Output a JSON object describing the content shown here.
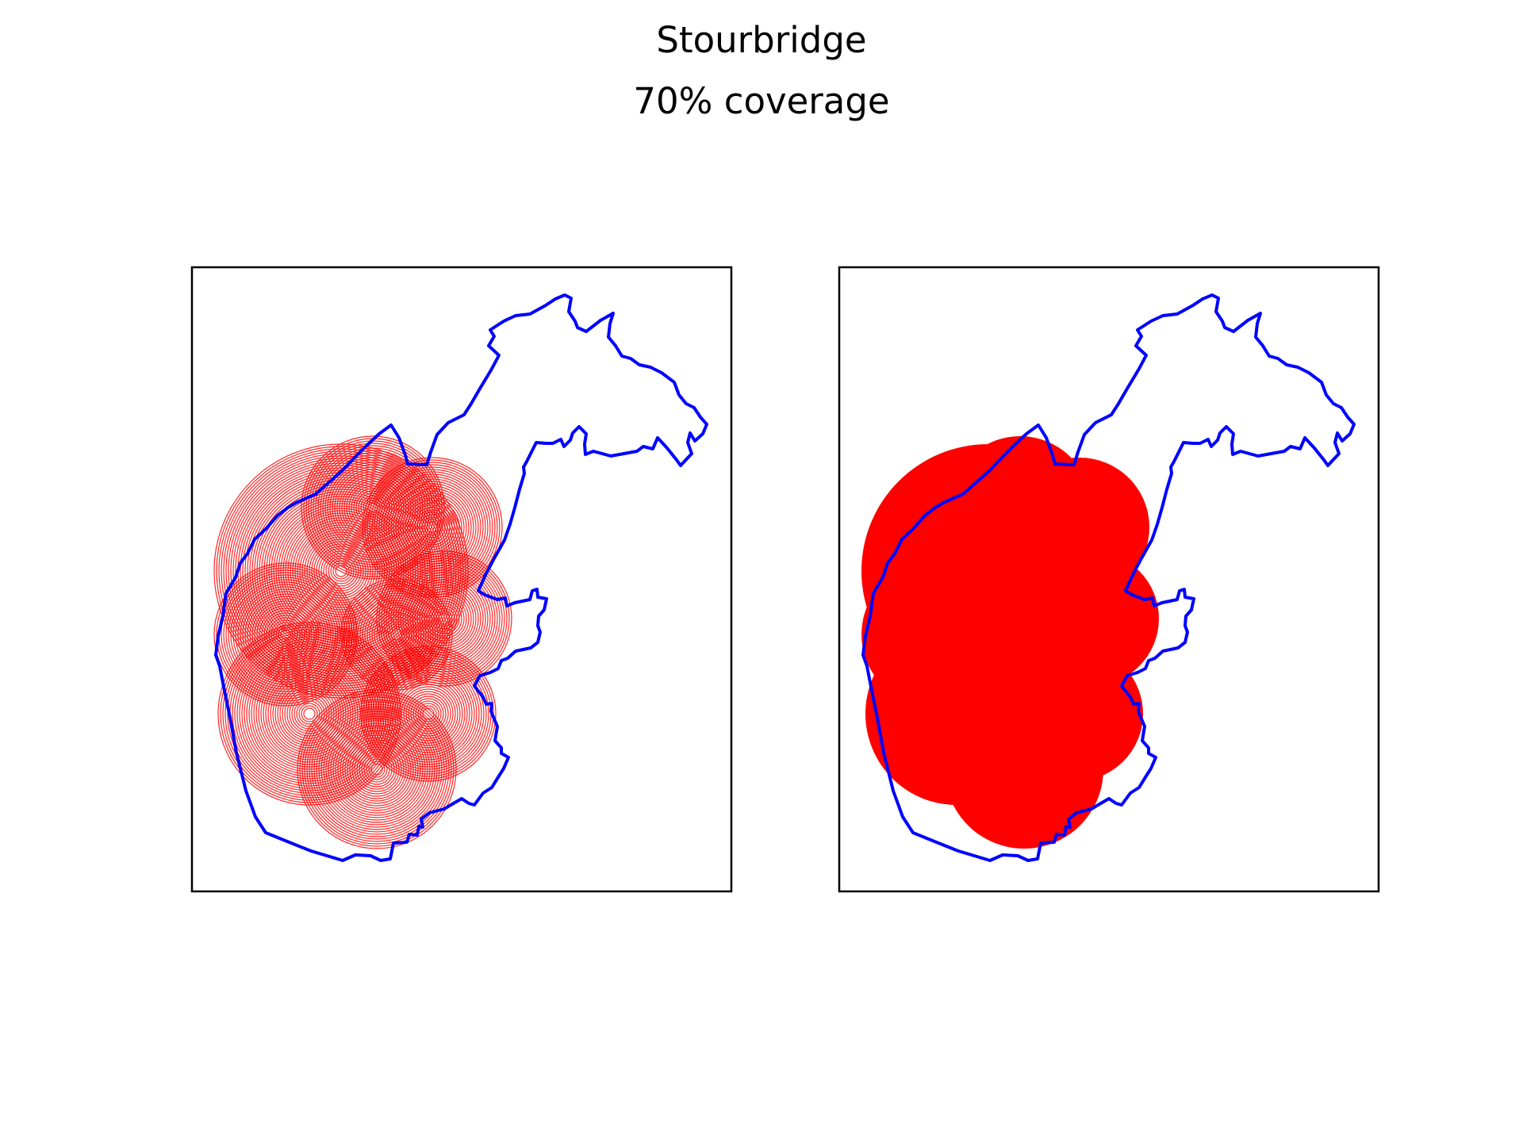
{
  "figure": {
    "title": "Stourbridge",
    "subtitle": "70% coverage"
  },
  "map_data": {
    "region_name": "Stourbridge",
    "coverage_percent": 70,
    "boundary_color": "#0000ff",
    "coverage_color": "#ff0000",
    "frame_color": "#000000",
    "panels": [
      {
        "id": "left",
        "coverage_style": "ring-outlines"
      },
      {
        "id": "right",
        "coverage_style": "solid-fill"
      }
    ]
  }
}
